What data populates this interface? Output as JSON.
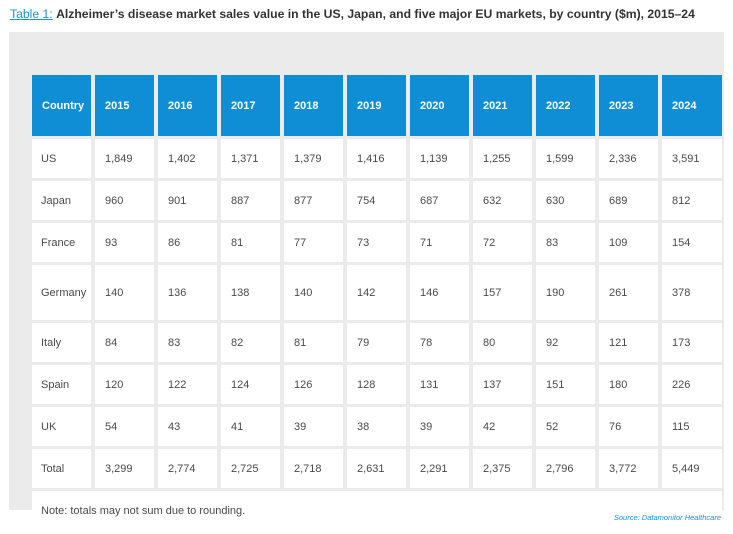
{
  "caption": {
    "label": "Table 1:",
    "title": "Alzheimer’s disease market sales value in the US, Japan, and five major EU markets, by country ($m), 2015–24"
  },
  "chart_data": {
    "type": "table",
    "columns": [
      "Country",
      "2015",
      "2016",
      "2017",
      "2018",
      "2019",
      "2020",
      "2021",
      "2022",
      "2023",
      "2024"
    ],
    "rows": [
      [
        "US",
        "1,849",
        "1,402",
        "1,371",
        "1,379",
        "1,416",
        "1,139",
        "1,255",
        "1,599",
        "2,336",
        "3,591"
      ],
      [
        "Japan",
        "960",
        "901",
        "887",
        "877",
        "754",
        "687",
        "632",
        "630",
        "689",
        "812"
      ],
      [
        "France",
        "93",
        "86",
        "81",
        "77",
        "73",
        "71",
        "72",
        "83",
        "109",
        "154"
      ],
      [
        "Germany",
        "140",
        "136",
        "138",
        "140",
        "142",
        "146",
        "157",
        "190",
        "261",
        "378"
      ],
      [
        "Italy",
        "84",
        "83",
        "82",
        "81",
        "79",
        "78",
        "80",
        "92",
        "121",
        "173"
      ],
      [
        "Spain",
        "120",
        "122",
        "124",
        "126",
        "128",
        "131",
        "137",
        "151",
        "180",
        "226"
      ],
      [
        "UK",
        "54",
        "43",
        "41",
        "39",
        "38",
        "39",
        "42",
        "52",
        "76",
        "115"
      ],
      [
        "Total",
        "3,299",
        "2,774",
        "2,725",
        "2,718",
        "2,631",
        "2,291",
        "2,375",
        "2,796",
        "3,772",
        "5,449"
      ]
    ],
    "note": "Note: totals may not sum due to rounding."
  },
  "source": "Source: Datamonitor Healthcare",
  "colors": {
    "header_bg": "#0f8ed6",
    "panel_bg": "#ebebeb",
    "accent_text": "#1a8fd8"
  }
}
